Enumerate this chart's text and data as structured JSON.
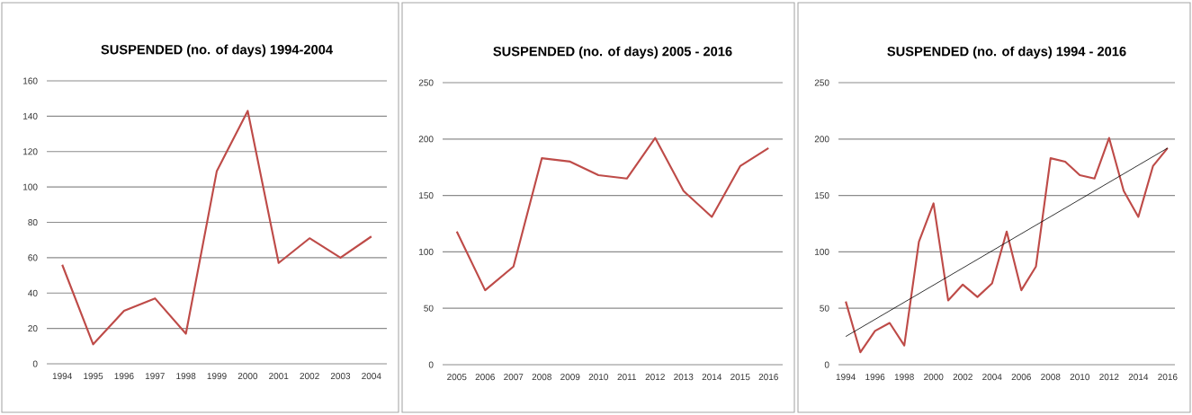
{
  "chart_data": [
    {
      "type": "line",
      "title": "SUSPENDED (no.  of days) 1994-2004",
      "categories": [
        "1994",
        "1995",
        "1996",
        "1997",
        "1998",
        "1999",
        "2000",
        "2001",
        "2002",
        "2003",
        "2004"
      ],
      "series": [
        {
          "color": "#be4b48",
          "values": [
            56,
            11,
            30,
            37,
            17,
            109,
            143,
            57,
            71,
            60,
            72
          ]
        }
      ],
      "ylim": [
        0,
        160
      ],
      "yticks": [
        0,
        20,
        40,
        60,
        80,
        100,
        120,
        140,
        160
      ],
      "grid": "y"
    },
    {
      "type": "line",
      "title": "SUSPENDED (no.  of days) 2005 - 2016",
      "categories": [
        "2005",
        "2006",
        "2007",
        "2008",
        "2009",
        "2010",
        "2011",
        "2012",
        "2013",
        "2014",
        "2015",
        "2016"
      ],
      "series": [
        {
          "color": "#be4b48",
          "values": [
            118,
            66,
            87,
            183,
            180,
            168,
            165,
            201,
            154,
            131,
            176,
            192
          ]
        }
      ],
      "ylim": [
        0,
        250
      ],
      "yticks": [
        0,
        50,
        100,
        150,
        200,
        250
      ],
      "grid": "y"
    },
    {
      "type": "line",
      "title": "SUSPENDED (no.  of days) 1994 - 2016",
      "x": [
        1994,
        1995,
        1996,
        1997,
        1998,
        1999,
        2000,
        2001,
        2002,
        2003,
        2004,
        2005,
        2006,
        2007,
        2008,
        2009,
        2010,
        2011,
        2012,
        2013,
        2014,
        2015,
        2016
      ],
      "series": [
        {
          "color": "#be4b48",
          "values": [
            56,
            11,
            30,
            37,
            17,
            109,
            143,
            57,
            71,
            60,
            72,
            118,
            66,
            87,
            183,
            180,
            168,
            165,
            201,
            154,
            131,
            176,
            192
          ]
        },
        {
          "type": "line",
          "color": "#000000",
          "x": [
            1994,
            2016
          ],
          "values": [
            25,
            192
          ]
        }
      ],
      "xlim": [
        1993.5,
        2016.5
      ],
      "xticks": [
        1994,
        1996,
        1998,
        2000,
        2002,
        2004,
        2006,
        2008,
        2010,
        2012,
        2014,
        2016
      ],
      "ylim": [
        0,
        250
      ],
      "yticks": [
        0,
        50,
        100,
        150,
        200,
        250
      ],
      "grid": "y"
    }
  ]
}
